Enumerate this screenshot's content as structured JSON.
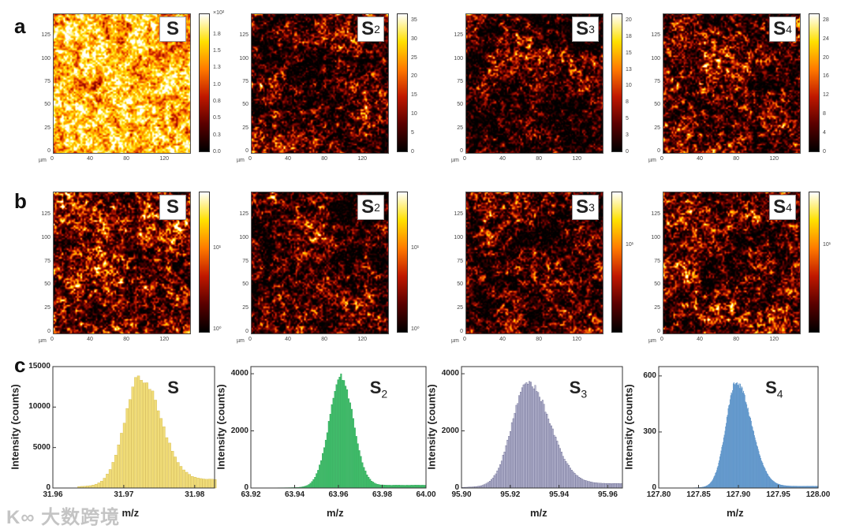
{
  "figure": {
    "panel_letters": [
      "a",
      "b",
      "c"
    ],
    "watermark": "大数跨境",
    "colormap": [
      "#000000",
      "#5a0000",
      "#c01800",
      "#ff7a00",
      "#ffe000",
      "#ffffff"
    ],
    "axis_unit": "µm",
    "map_axes": {
      "x_ticks": [
        "0",
        "40",
        "80",
        "120"
      ],
      "y_ticks": [
        "0",
        "25",
        "50",
        "75",
        "100",
        "125"
      ],
      "range": [
        0,
        150
      ]
    }
  },
  "row_a": [
    {
      "label": "S",
      "sub": "",
      "colorbar_ticks": [
        "0.0",
        "0.3",
        "0.5",
        "0.8",
        "1.0",
        "1.3",
        "1.5",
        "1.8",
        "×10²"
      ],
      "brightness": 0.72
    },
    {
      "label": "S",
      "sub": "2",
      "colorbar_ticks": [
        "0",
        "5",
        "10",
        "15",
        "20",
        "25",
        "30",
        "35"
      ],
      "brightness": 0.28
    },
    {
      "label": "S",
      "sub": "3",
      "colorbar_ticks": [
        "0",
        "3",
        "5",
        "8",
        "10",
        "13",
        "15",
        "18",
        "20"
      ],
      "brightness": 0.24
    },
    {
      "label": "S",
      "sub": "4",
      "colorbar_ticks": [
        "0",
        "4",
        "8",
        "12",
        "16",
        "20",
        "24",
        "28"
      ],
      "brightness": 0.32
    }
  ],
  "row_b": [
    {
      "label": "S",
      "sub": "",
      "colorbar_ticks": [
        "10⁰",
        "10¹"
      ],
      "brightness": 0.38
    },
    {
      "label": "S",
      "sub": "2",
      "colorbar_ticks": [
        "10⁰",
        "10¹"
      ],
      "brightness": 0.26
    },
    {
      "label": "S",
      "sub": "3",
      "colorbar_ticks": [
        "10¹"
      ],
      "brightness": 0.27
    },
    {
      "label": "S",
      "sub": "4",
      "colorbar_ticks": [
        "10¹"
      ],
      "brightness": 0.34
    }
  ],
  "chart_data": [
    {
      "type": "bar",
      "title": "S",
      "sub": "",
      "xlabel": "m/z",
      "ylabel": "Intensity (counts)",
      "color": "#f0dc78",
      "edge": "#c9a92a",
      "xlim": [
        31.96,
        31.9828
      ],
      "ylim": [
        0,
        15000
      ],
      "x_ticks": [
        "31.96",
        "31.97",
        "31.98"
      ],
      "y_ticks": [
        "0",
        "5000",
        "10000",
        "15000"
      ],
      "peak": {
        "mz": 31.9722,
        "intensity": 13400,
        "sigma_left": 0.0022,
        "sigma_right": 0.0028,
        "tail": 1100,
        "start": 31.9635,
        "step": 0.0004
      }
    },
    {
      "type": "bar",
      "title": "S",
      "sub": "2",
      "xlabel": "m/z",
      "ylabel": "Intensity (counts)",
      "color": "#3fbf6a",
      "edge": "#1f9a4a",
      "xlim": [
        63.92,
        64.0
      ],
      "ylim": [
        0,
        4250
      ],
      "x_ticks": [
        "63.92",
        "63.94",
        "63.96",
        "63.98",
        "64.00"
      ],
      "y_ticks": [
        "0",
        "2000",
        "4000"
      ],
      "peak": {
        "mz": 63.961,
        "intensity": 3850,
        "sigma_left": 0.0055,
        "sigma_right": 0.0055,
        "tail": 100,
        "start": 63.928,
        "step": 0.0007
      }
    },
    {
      "type": "bar",
      "title": "S",
      "sub": "3",
      "xlabel": "m/z",
      "ylabel": "Intensity (counts)",
      "color": "#b9b9d2",
      "edge": "#4a4a78",
      "xlim": [
        95.9,
        95.966
      ],
      "ylim": [
        0,
        4250
      ],
      "x_ticks": [
        "95.90",
        "95.92",
        "95.94",
        "95.96"
      ],
      "y_ticks": [
        "0",
        "2000",
        "4000"
      ],
      "peak": {
        "mz": 95.927,
        "intensity": 3650,
        "sigma_left": 0.0065,
        "sigma_right": 0.009,
        "tail": 160,
        "start": 95.9,
        "step": 0.0006
      }
    },
    {
      "type": "bar",
      "title": "S",
      "sub": "4",
      "xlabel": "m/z",
      "ylabel": "Intensity (counts)",
      "color": "#6a9fd0",
      "edge": "#5a90c6",
      "xlim": [
        127.8,
        128.0
      ],
      "ylim": [
        0,
        650
      ],
      "x_ticks": [
        "127.80",
        "127.85",
        "127.90",
        "127.95",
        "128.00"
      ],
      "y_ticks": [
        "0",
        "300",
        "600"
      ],
      "peak": {
        "mz": 127.897,
        "intensity": 560,
        "sigma_left": 0.013,
        "sigma_right": 0.019,
        "tail": 10,
        "start": 127.83,
        "step": 0.0008
      }
    }
  ]
}
